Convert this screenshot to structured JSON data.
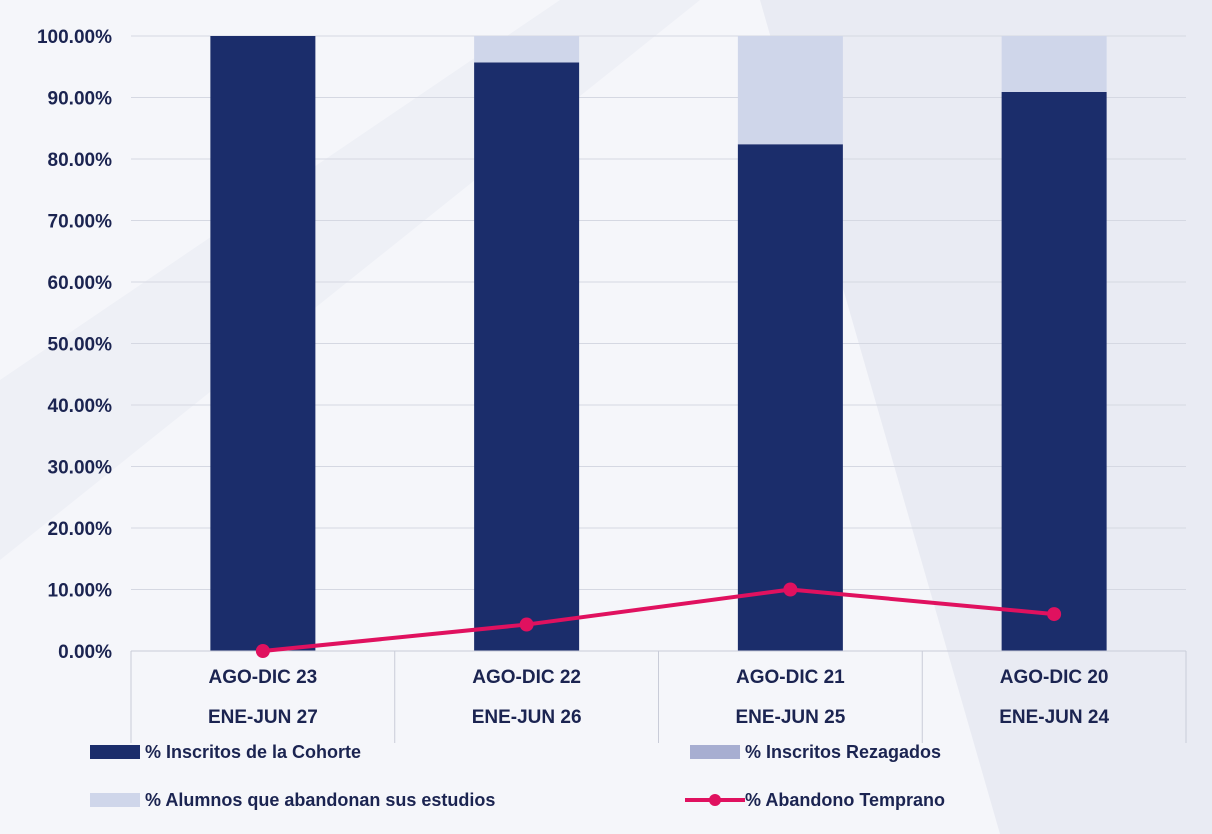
{
  "chart_data": {
    "type": "bar",
    "stacked": true,
    "categories": [
      [
        "AGO-DIC 23",
        "ENE-JUN 27"
      ],
      [
        "AGO-DIC 22",
        "ENE-JUN 26"
      ],
      [
        "AGO-DIC 21",
        "ENE-JUN 25"
      ],
      [
        "AGO-DIC 20",
        "ENE-JUN 24"
      ]
    ],
    "y_ticks": [
      "0.00%",
      "10.00%",
      "20.00%",
      "30.00%",
      "40.00%",
      "50.00%",
      "60.00%",
      "70.00%",
      "80.00%",
      "90.00%",
      "100.00%"
    ],
    "ylim": [
      0,
      100
    ],
    "grid": true,
    "legend_position": "bottom",
    "series": [
      {
        "name": "% Inscritos de la Cohorte",
        "kind": "bar",
        "color": "#1b2d6b",
        "values": [
          100,
          95.7,
          82.4,
          90.9
        ]
      },
      {
        "name": "% Inscritos Rezagados",
        "kind": "bar",
        "color": "#a7aed1",
        "values": [
          0,
          0,
          0,
          0
        ]
      },
      {
        "name": "% Alumnos que abandonan sus estudios",
        "kind": "bar",
        "color": "#cfd6ea",
        "values": [
          0,
          4.3,
          17.6,
          9.1
        ]
      },
      {
        "name": "% Abandono Temprano",
        "kind": "line",
        "color": "#e0115f",
        "values": [
          0,
          4.3,
          10.0,
          6.0
        ]
      }
    ]
  }
}
